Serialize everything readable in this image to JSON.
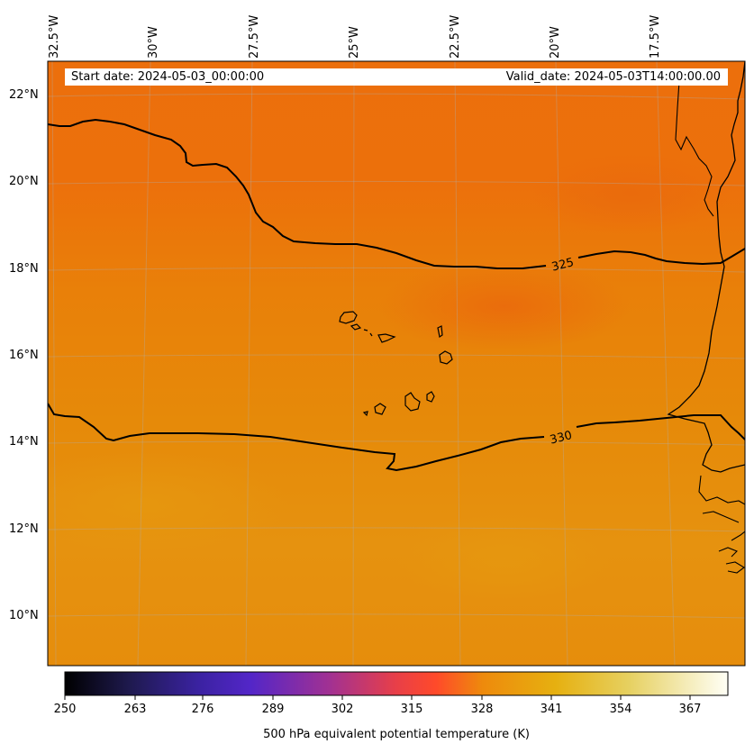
{
  "header": {
    "start_date": "Start date: 2024-05-03_00:00:00",
    "valid_date": "Valid_date: 2024-05-03T14:00:00.00"
  },
  "axes": {
    "longitudes": [
      "32.5°W",
      "30°W",
      "27.5°W",
      "25°W",
      "22.5°W",
      "20°W",
      "17.5°W"
    ],
    "latitudes": [
      "22°N",
      "20°N",
      "18°N",
      "16°N",
      "14°N",
      "12°N",
      "10°N"
    ]
  },
  "contours": {
    "upper_label": "325",
    "lower_label": "330"
  },
  "colorbar": {
    "ticks": [
      "250",
      "263",
      "276",
      "289",
      "302",
      "315",
      "328",
      "341",
      "354",
      "367"
    ],
    "label": "500 hPa equivalent potential temperature (K)",
    "range": [
      250,
      373
    ],
    "stops": [
      "#000000",
      "#1f1a50",
      "#4f24c8",
      "#9a2f9c",
      "#e33a55",
      "#ff4f2a",
      "#ee8a0c",
      "#e6a80e",
      "#e6cc3a",
      "#f2eec4",
      "#fffff6"
    ]
  },
  "field": {
    "north_color": "#ec6f0c",
    "mid_color": "#e98308",
    "south_color": "#e69210"
  },
  "coast_color": "#000000"
}
